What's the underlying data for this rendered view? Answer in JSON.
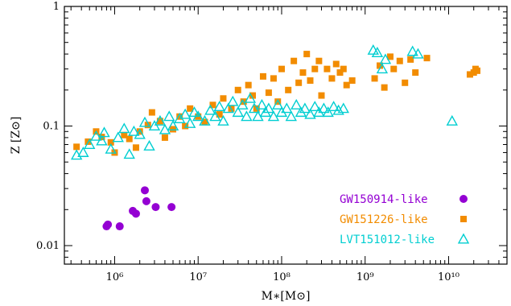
{
  "chart_data": {
    "type": "scatter",
    "x_scale": "log",
    "y_scale": "log",
    "xlim": [
      250000,
      50000000000
    ],
    "ylim": [
      0.007,
      1
    ],
    "xlabel": "M∗[M⊙]",
    "ylabel": "Z [Z⊙]",
    "x_ticks": [
      {
        "value": 1000000,
        "label": "10⁶"
      },
      {
        "value": 10000000,
        "label": "10⁷"
      },
      {
        "value": 100000000,
        "label": "10⁸"
      },
      {
        "value": 1000000000,
        "label": "10⁹"
      },
      {
        "value": 10000000000,
        "label": "10¹⁰"
      }
    ],
    "y_ticks": [
      {
        "value": 0.01,
        "label": "0.01"
      },
      {
        "value": 0.1,
        "label": "0.1"
      },
      {
        "value": 1,
        "label": "1"
      }
    ],
    "legend_position": "bottom-right",
    "series": [
      {
        "name": "GW150914-like",
        "color": "#9400D3",
        "marker": "circle",
        "points": [
          [
            800000,
            0.0145
          ],
          [
            830000,
            0.015
          ],
          [
            1150000,
            0.0145
          ],
          [
            1650000,
            0.0195
          ],
          [
            1800000,
            0.0185
          ],
          [
            2300000,
            0.029
          ],
          [
            2400000,
            0.0235
          ],
          [
            3100000,
            0.021
          ],
          [
            4800000,
            0.021
          ]
        ]
      },
      {
        "name": "GW151226-like",
        "color": "#F28C00",
        "marker": "square",
        "points": [
          [
            350000,
            0.067
          ],
          [
            480000,
            0.074
          ],
          [
            600000,
            0.09
          ],
          [
            700000,
            0.081
          ],
          [
            900000,
            0.073
          ],
          [
            1000000,
            0.06
          ],
          [
            1300000,
            0.084
          ],
          [
            1500000,
            0.078
          ],
          [
            1800000,
            0.066
          ],
          [
            2000000,
            0.09
          ],
          [
            2500000,
            0.102
          ],
          [
            2800000,
            0.13
          ],
          [
            3500000,
            0.11
          ],
          [
            4000000,
            0.08
          ],
          [
            5000000,
            0.094
          ],
          [
            6000000,
            0.12
          ],
          [
            7000000,
            0.1
          ],
          [
            8000000,
            0.14
          ],
          [
            10000000,
            0.12
          ],
          [
            12000000,
            0.108
          ],
          [
            15000000,
            0.15
          ],
          [
            18000000,
            0.125
          ],
          [
            20000000,
            0.17
          ],
          [
            25000000,
            0.14
          ],
          [
            30000000,
            0.2
          ],
          [
            35000000,
            0.16
          ],
          [
            40000000,
            0.22
          ],
          [
            45000000,
            0.18
          ],
          [
            50000000,
            0.14
          ],
          [
            60000000,
            0.26
          ],
          [
            70000000,
            0.19
          ],
          [
            80000000,
            0.25
          ],
          [
            90000000,
            0.16
          ],
          [
            100000000,
            0.3
          ],
          [
            120000000,
            0.2
          ],
          [
            140000000,
            0.35
          ],
          [
            160000000,
            0.23
          ],
          [
            180000000,
            0.28
          ],
          [
            200000000,
            0.4
          ],
          [
            220000000,
            0.24
          ],
          [
            250000000,
            0.3
          ],
          [
            280000000,
            0.35
          ],
          [
            300000000,
            0.18
          ],
          [
            350000000,
            0.3
          ],
          [
            400000000,
            0.25
          ],
          [
            450000000,
            0.33
          ],
          [
            500000000,
            0.28
          ],
          [
            550000000,
            0.3
          ],
          [
            600000000,
            0.22
          ],
          [
            700000000,
            0.24
          ],
          [
            1300000000,
            0.25
          ],
          [
            1500000000,
            0.32
          ],
          [
            1700000000,
            0.21
          ],
          [
            2000000000,
            0.38
          ],
          [
            2200000000,
            0.3
          ],
          [
            2600000000,
            0.35
          ],
          [
            3000000000,
            0.23
          ],
          [
            3500000000,
            0.36
          ],
          [
            4000000000,
            0.28
          ],
          [
            5500000000,
            0.37
          ],
          [
            18000000000,
            0.27
          ],
          [
            20000000000,
            0.28
          ],
          [
            21000000000,
            0.3
          ],
          [
            22000000000,
            0.29
          ]
        ]
      },
      {
        "name": "LVT151012-like",
        "color": "#00CED1",
        "marker": "triangle-open",
        "points": [
          [
            350000,
            0.057
          ],
          [
            420000,
            0.06
          ],
          [
            500000,
            0.07
          ],
          [
            600000,
            0.082
          ],
          [
            700000,
            0.075
          ],
          [
            750000,
            0.088
          ],
          [
            900000,
            0.064
          ],
          [
            1100000,
            0.08
          ],
          [
            1300000,
            0.095
          ],
          [
            1500000,
            0.058
          ],
          [
            1700000,
            0.09
          ],
          [
            2000000,
            0.085
          ],
          [
            2300000,
            0.107
          ],
          [
            2600000,
            0.068
          ],
          [
            3000000,
            0.1
          ],
          [
            3500000,
            0.11
          ],
          [
            4000000,
            0.093
          ],
          [
            4500000,
            0.12
          ],
          [
            5000000,
            0.1
          ],
          [
            6000000,
            0.115
          ],
          [
            7000000,
            0.125
          ],
          [
            8000000,
            0.105
          ],
          [
            9000000,
            0.13
          ],
          [
            10000000,
            0.12
          ],
          [
            12000000,
            0.11
          ],
          [
            14000000,
            0.135
          ],
          [
            16000000,
            0.12
          ],
          [
            18000000,
            0.145
          ],
          [
            20000000,
            0.11
          ],
          [
            23000000,
            0.14
          ],
          [
            26000000,
            0.16
          ],
          [
            30000000,
            0.13
          ],
          [
            34000000,
            0.15
          ],
          [
            38000000,
            0.12
          ],
          [
            42000000,
            0.17
          ],
          [
            47000000,
            0.14
          ],
          [
            52000000,
            0.12
          ],
          [
            58000000,
            0.15
          ],
          [
            64000000,
            0.13
          ],
          [
            70000000,
            0.14
          ],
          [
            80000000,
            0.12
          ],
          [
            90000000,
            0.15
          ],
          [
            100000000,
            0.13
          ],
          [
            115000000,
            0.14
          ],
          [
            130000000,
            0.12
          ],
          [
            150000000,
            0.15
          ],
          [
            170000000,
            0.13
          ],
          [
            190000000,
            0.14
          ],
          [
            220000000,
            0.125
          ],
          [
            250000000,
            0.145
          ],
          [
            280000000,
            0.13
          ],
          [
            320000000,
            0.14
          ],
          [
            360000000,
            0.13
          ],
          [
            420000000,
            0.145
          ],
          [
            480000000,
            0.135
          ],
          [
            550000000,
            0.14
          ],
          [
            1250000000,
            0.43
          ],
          [
            1400000000,
            0.41
          ],
          [
            1600000000,
            0.3
          ],
          [
            1750000000,
            0.36
          ],
          [
            3700000000,
            0.42
          ],
          [
            4300000000,
            0.4
          ],
          [
            11000000000,
            0.11
          ]
        ]
      }
    ]
  }
}
